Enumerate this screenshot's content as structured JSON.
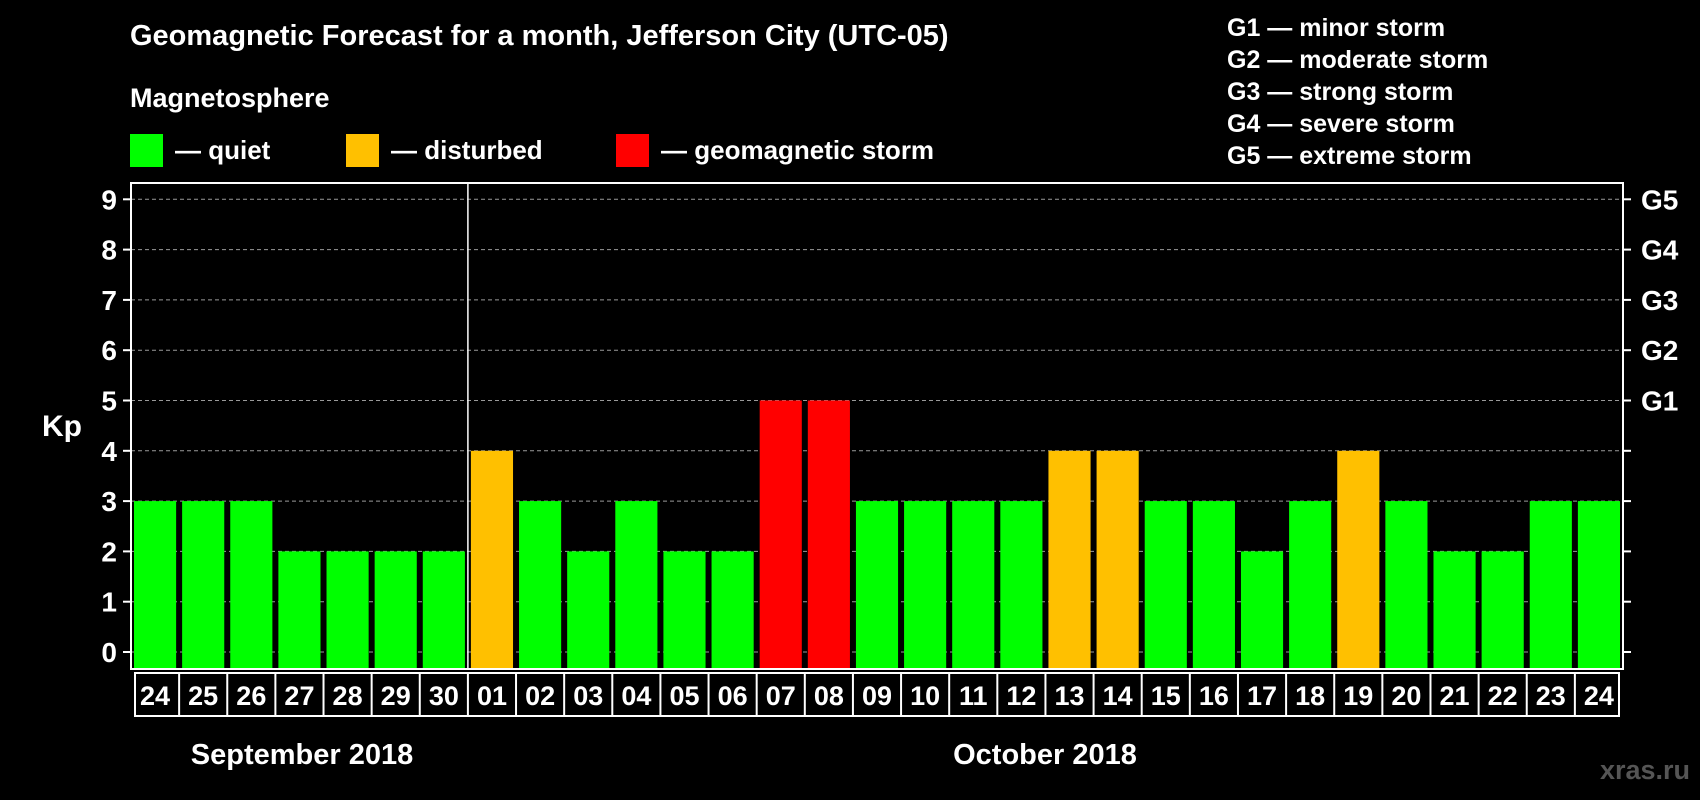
{
  "title": "Geomagnetic Forecast for a month, Jefferson City (UTC-05)",
  "subtitle": "Magnetosphere",
  "legend": [
    {
      "label": "— quiet",
      "color": "#00ff00"
    },
    {
      "label": "— disturbed",
      "color": "#ffc000"
    },
    {
      "label": "— geomagnetic storm",
      "color": "#ff0000"
    }
  ],
  "storm_scale": [
    "G1 — minor storm",
    "G2 — moderate storm",
    "G3 — strong storm",
    "G4 — severe storm",
    "G5 — extreme storm"
  ],
  "watermark": "xras.ru",
  "chart_data": {
    "type": "bar",
    "ylabel": "Kp",
    "ylim": [
      0,
      9
    ],
    "yticks": [
      "0",
      "1",
      "2",
      "3",
      "4",
      "5",
      "6",
      "7",
      "8",
      "9"
    ],
    "right_axis_labels": [
      {
        "value": 5,
        "label": "G1"
      },
      {
        "value": 6,
        "label": "G2"
      },
      {
        "value": 7,
        "label": "G3"
      },
      {
        "value": 8,
        "label": "G4"
      },
      {
        "value": 9,
        "label": "G5"
      }
    ],
    "grid": true,
    "categories": [
      "24",
      "25",
      "26",
      "27",
      "28",
      "29",
      "30",
      "01",
      "02",
      "03",
      "04",
      "05",
      "06",
      "07",
      "08",
      "09",
      "10",
      "11",
      "12",
      "13",
      "14",
      "15",
      "16",
      "17",
      "18",
      "19",
      "20",
      "21",
      "22",
      "23",
      "24"
    ],
    "values": [
      3,
      3,
      3,
      2,
      2,
      2,
      2,
      4,
      3,
      2,
      3,
      2,
      2,
      5,
      5,
      3,
      3,
      3,
      3,
      4,
      4,
      3,
      3,
      2,
      3,
      4,
      3,
      2,
      2,
      3,
      3
    ],
    "months": [
      {
        "label": "September 2018",
        "start_index": 0,
        "end_index": 6
      },
      {
        "label": "October 2018",
        "start_index": 7,
        "end_index": 30
      }
    ],
    "color_thresholds": {
      "quiet": "#00ff00",
      "disturbed": "#ffc000",
      "storm": "#ff0000"
    }
  }
}
